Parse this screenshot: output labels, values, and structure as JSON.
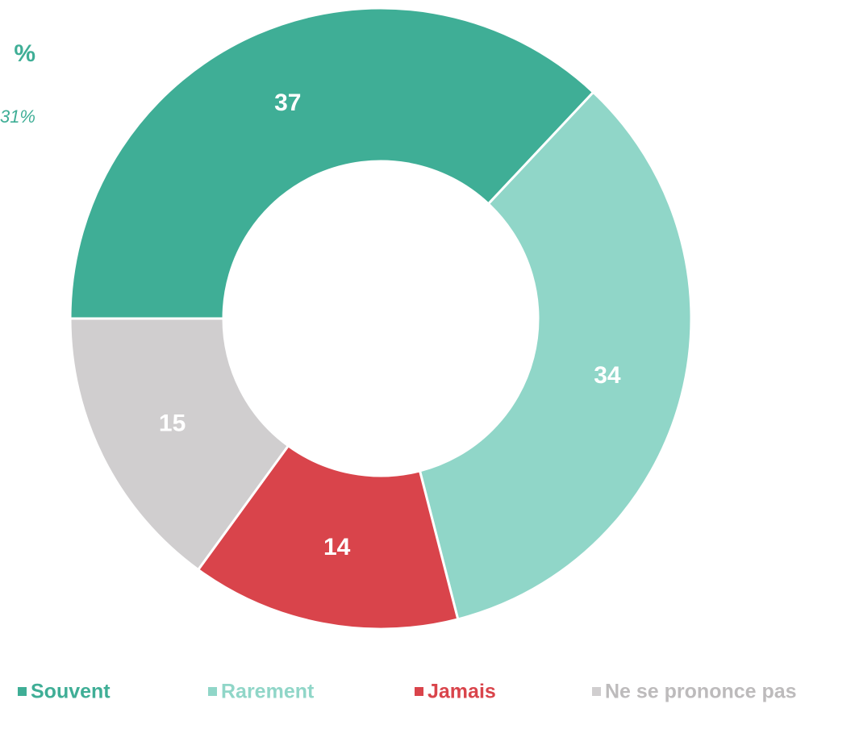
{
  "chart_data": {
    "type": "donut",
    "annotations": [
      "%",
      "31%"
    ],
    "categories": [
      "Souvent",
      "Rarement",
      "Jamais",
      "Ne se prononce pas"
    ],
    "values": [
      37,
      34,
      14,
      15
    ],
    "colors": [
      "#3fae96",
      "#90d6c8",
      "#d9444b",
      "#d0cecf"
    ],
    "legend": "bottom"
  }
}
